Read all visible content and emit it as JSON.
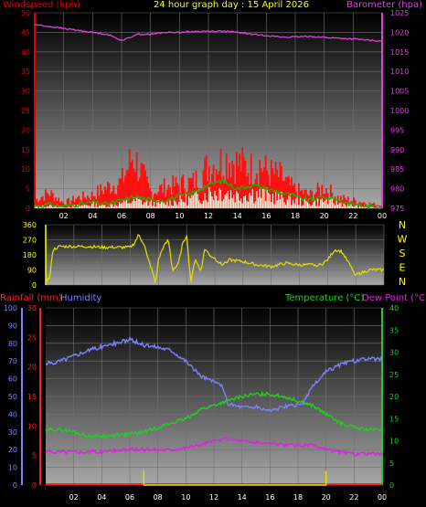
{
  "title": "24 hour graph day : 15 April 2026",
  "colors": {
    "wind": "#e00000",
    "gust_bar": "#ff1010",
    "wind_avg": "#00c000",
    "wind_min": "#e8ffe8",
    "barometer": "#e040e0",
    "direction": "#e0e000",
    "humidity": "#8080ff",
    "temperature": "#20d020",
    "dewpoint": "#e020e0",
    "rainfall": "#ff2020",
    "rain_rate": "#e0e000",
    "title": "#ffff00"
  },
  "chart_data": [
    {
      "type": "line",
      "name": "wind-barometer",
      "left_axis_label": "Windspeed (kph)",
      "right_axis_label": "Barometer (hpa)",
      "x_ticks": [
        "02",
        "04",
        "06",
        "08",
        "10",
        "12",
        "14",
        "16",
        "18",
        "20",
        "22",
        "00"
      ],
      "y_left_ticks": [
        "0",
        "5",
        "10",
        "15",
        "20",
        "25",
        "30",
        "35",
        "40",
        "45",
        "50"
      ],
      "y_left_range": [
        0,
        50
      ],
      "y_right_ticks": [
        "975",
        "980",
        "985",
        "990",
        "995",
        "1000",
        "1005",
        "1010",
        "1015",
        "1020",
        "1025"
      ],
      "y_right_range": [
        975,
        1025
      ],
      "x_range": [
        0,
        24
      ],
      "grid": true,
      "series": [
        {
          "key": "barometer",
          "axis": "right",
          "x": [
            0,
            1,
            2,
            3,
            4,
            5,
            6,
            6.5,
            7,
            8,
            9,
            10,
            11,
            12,
            13,
            14,
            15,
            16,
            17,
            18,
            19,
            20,
            21,
            22,
            23,
            24
          ],
          "y": [
            1022,
            1021.5,
            1021,
            1020.5,
            1020,
            1019.5,
            1018,
            1018.5,
            1019.5,
            1019.5,
            1020,
            1020,
            1020.2,
            1020.3,
            1020.3,
            1020,
            1019.5,
            1019.2,
            1018.8,
            1018.8,
            1019,
            1018.7,
            1018.5,
            1018.3,
            1018,
            1017.7
          ]
        },
        {
          "key": "gust",
          "axis": "left",
          "x": [
            0,
            1,
            2,
            3,
            4,
            5,
            6,
            6.8,
            7.5,
            8,
            9,
            10,
            11,
            11.5,
            12,
            12.5,
            13,
            13.5,
            14,
            14.5,
            15,
            15.5,
            16,
            16.5,
            17,
            17.5,
            18,
            19,
            20,
            20.5,
            21,
            22,
            23,
            24
          ],
          "y": [
            3,
            6,
            2,
            4,
            5,
            8,
            10,
            20,
            12,
            6,
            8,
            9,
            10,
            13,
            16,
            17,
            18,
            19,
            17,
            16,
            15,
            17,
            14,
            13,
            12,
            9,
            7,
            5,
            8,
            6,
            4,
            3,
            2,
            1
          ]
        },
        {
          "key": "wind_avg",
          "axis": "left",
          "x": [
            0,
            1,
            2,
            3,
            4,
            5,
            6,
            7,
            8,
            9,
            10,
            11,
            12,
            13,
            14,
            15,
            16,
            17,
            18,
            19,
            20,
            21,
            22,
            23,
            24
          ],
          "y": [
            0.5,
            1,
            0.5,
            1,
            1.5,
            1,
            2,
            3,
            2,
            2,
            3,
            4,
            6,
            7,
            5,
            6,
            5,
            4,
            3,
            2,
            3,
            2,
            1,
            0.5,
            0.3
          ]
        }
      ]
    },
    {
      "type": "line",
      "name": "wind-direction",
      "x_ticks": [],
      "y_left_ticks": [
        "360",
        "270",
        "180",
        "90",
        "0"
      ],
      "y_range": [
        0,
        360
      ],
      "right_labels": [
        "N",
        "W",
        "S",
        "E",
        "N"
      ],
      "series": [
        {
          "key": "direction",
          "x": [
            0,
            0.3,
            0.5,
            1,
            1.5,
            3,
            4,
            5,
            6,
            6.3,
            6.6,
            7,
            7.2,
            7.5,
            7.8,
            8,
            8.3,
            8.7,
            9,
            9.4,
            9.7,
            10,
            10.3,
            10.6,
            11,
            11.3,
            11.6,
            12,
            12.5,
            13,
            14,
            15,
            16,
            17,
            18,
            19,
            19.5,
            20,
            20.5,
            21,
            22,
            23,
            24
          ],
          "y": [
            20,
            45,
            210,
            230,
            230,
            230,
            225,
            225,
            225,
            250,
            300,
            240,
            170,
            100,
            10,
            150,
            220,
            270,
            90,
            120,
            240,
            300,
            10,
            160,
            80,
            220,
            180,
            160,
            120,
            150,
            140,
            120,
            110,
            130,
            120,
            120,
            120,
            150,
            210,
            200,
            60,
            90,
            90
          ]
        }
      ]
    },
    {
      "type": "line",
      "name": "temperature-humidity",
      "left_axis_label": "Rainfall (mm)",
      "left_axis_label_2": "Humidity",
      "right_axis_label": "Temperature (°C)",
      "right_axis_label_2": "Dew Point (°C)",
      "x_ticks": [
        "02",
        "04",
        "06",
        "08",
        "10",
        "12",
        "14",
        "16",
        "18",
        "20",
        "22",
        "00"
      ],
      "y_hum_ticks": [
        "100",
        "90",
        "80",
        "70",
        "60",
        "50",
        "40",
        "30",
        "20",
        "10",
        "0"
      ],
      "y_rain_ticks": [
        "30",
        "25",
        "20",
        "15",
        "10",
        "5",
        "0"
      ],
      "y_temp_ticks": [
        "40",
        "35",
        "30",
        "25",
        "20",
        "15",
        "10",
        "5",
        "0"
      ],
      "y_hum_range": [
        0,
        100
      ],
      "y_temp_range": [
        0,
        40
      ],
      "grid": true,
      "series": [
        {
          "key": "humidity",
          "axis": "humidity",
          "x": [
            0,
            1,
            2,
            3,
            4,
            5,
            6,
            7,
            8,
            9,
            10,
            11,
            12,
            12.5,
            13,
            14,
            15,
            16,
            17,
            18,
            18.5,
            19,
            20,
            21,
            22,
            23,
            24
          ],
          "y": [
            68,
            70,
            73,
            76,
            78,
            80,
            82,
            79,
            78,
            76,
            70,
            62,
            58,
            57,
            46,
            44,
            44,
            42,
            44,
            45,
            48,
            55,
            64,
            68,
            70,
            71,
            71
          ]
        },
        {
          "key": "temperature",
          "axis": "temp",
          "x": [
            0,
            1,
            2,
            3,
            4,
            5,
            6,
            7,
            8,
            9,
            10,
            11,
            12,
            13,
            14,
            15,
            16,
            17,
            18,
            19,
            20,
            21,
            22,
            23,
            24
          ],
          "y": [
            12.5,
            12.5,
            12,
            11,
            11,
            11.2,
            11.5,
            12,
            13,
            14,
            15,
            17,
            18,
            19,
            20,
            20.5,
            20.5,
            20,
            19,
            18,
            16,
            14,
            13,
            12.5,
            12.5
          ]
        },
        {
          "key": "dewpoint",
          "axis": "temp",
          "x": [
            0,
            1,
            2,
            3,
            4,
            5,
            6,
            7,
            8,
            9,
            10,
            11,
            12,
            13,
            14,
            15,
            16,
            17,
            18,
            19,
            20,
            21,
            22,
            23,
            24
          ],
          "y": [
            7.5,
            7.5,
            7.5,
            7.5,
            7.5,
            7.8,
            8,
            8,
            8,
            8,
            8.5,
            9,
            10,
            10.5,
            10,
            9.5,
            9.5,
            9,
            9,
            9,
            8,
            7.5,
            7,
            7,
            7
          ]
        },
        {
          "key": "rainfall",
          "axis": "humidity",
          "x": [
            0,
            24
          ],
          "y": [
            0.5,
            0.5
          ]
        },
        {
          "key": "rain_rate",
          "axis": "humidity",
          "x": [
            7,
            7,
            7,
            20,
            20,
            20
          ],
          "y": [
            0,
            8,
            0,
            0,
            8,
            0
          ]
        }
      ]
    }
  ]
}
